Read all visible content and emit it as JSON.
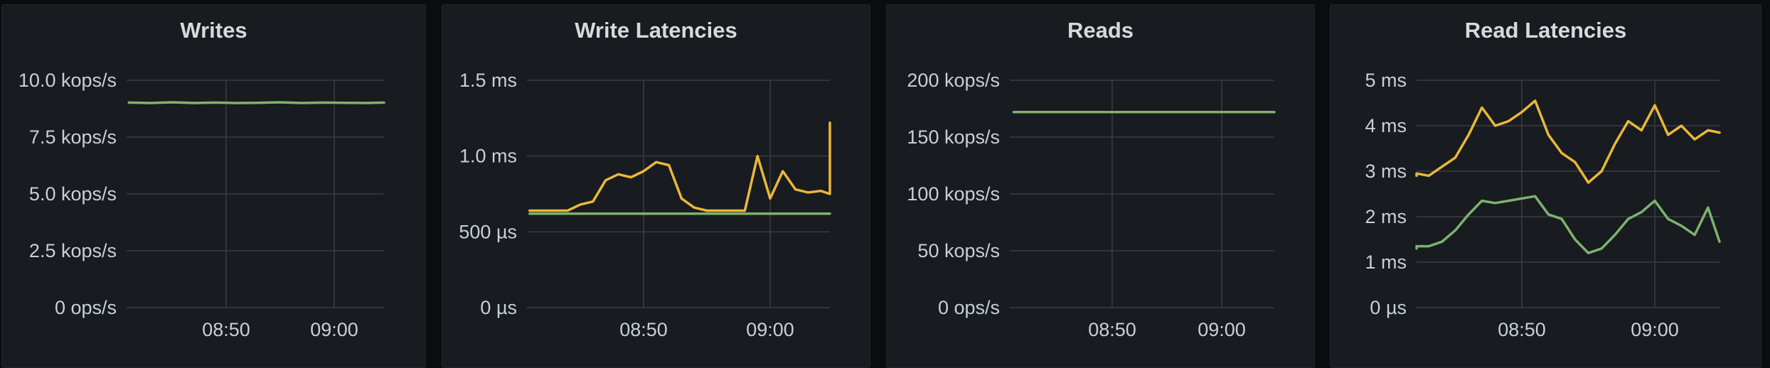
{
  "colors": {
    "background": "#0b0c0e",
    "panel": "#181b1f",
    "grid": "#3a3d42",
    "text": "#c7d0d9",
    "series_green": "#7eb26d",
    "series_yellow": "#eab839"
  },
  "x_ticks": [
    "08:50",
    "09:00"
  ],
  "chart_data": [
    {
      "type": "line",
      "title": "Writes",
      "unit": "kops/s",
      "ylim": [
        0,
        10.0
      ],
      "y_ticks": [
        {
          "value": 0,
          "label": "0 ops/s"
        },
        {
          "value": 2.5,
          "label": "2.5 kops/s"
        },
        {
          "value": 5.0,
          "label": "5.0 kops/s"
        },
        {
          "value": 7.5,
          "label": "7.5 kops/s"
        },
        {
          "value": 10.0,
          "label": "10.0 kops/s"
        }
      ],
      "grid": true,
      "legend": "none",
      "x": [
        "08:41",
        "08:43",
        "08:45",
        "08:47",
        "08:49",
        "08:51",
        "08:53",
        "08:55",
        "08:57",
        "08:59",
        "09:01",
        "09:03",
        "09:05"
      ],
      "series": [
        {
          "color": "#7eb26d",
          "values": [
            9.02,
            9.0,
            9.03,
            9.0,
            9.02,
            9.0,
            9.01,
            9.03,
            9.0,
            9.02,
            9.01,
            9.0,
            9.02
          ]
        }
      ]
    },
    {
      "type": "line",
      "title": "Write Latencies",
      "unit": "ms",
      "ylim": [
        0,
        1.5
      ],
      "y_ticks": [
        {
          "value": 0,
          "label": "0 µs"
        },
        {
          "value": 0.5,
          "label": "500 µs"
        },
        {
          "value": 1.0,
          "label": "1.0 ms"
        },
        {
          "value": 1.5,
          "label": "1.5 ms"
        }
      ],
      "grid": true,
      "legend": "none",
      "x": [
        "08:41",
        "08:42",
        "08:43",
        "08:44",
        "08:45",
        "08:46",
        "08:47",
        "08:48",
        "08:49",
        "08:50",
        "08:51",
        "08:52",
        "08:53",
        "08:54",
        "08:55",
        "08:56",
        "08:57",
        "08:58",
        "08:59",
        "09:00",
        "09:01",
        "09:02",
        "09:03",
        "09:04",
        "09:05",
        "09:06"
      ],
      "series": [
        {
          "color": "#eab839",
          "values": [
            0.64,
            0.64,
            0.64,
            0.64,
            0.68,
            0.7,
            0.84,
            0.88,
            0.86,
            0.9,
            0.96,
            0.94,
            0.72,
            0.66,
            0.64,
            0.64,
            0.64,
            0.64,
            1.0,
            0.72,
            0.9,
            0.78,
            0.76,
            0.77,
            0.75,
            1.22
          ]
        },
        {
          "color": "#7eb26d",
          "values": [
            0.62,
            0.62,
            0.62,
            0.62,
            0.62,
            0.62,
            0.62,
            0.62,
            0.62,
            0.62,
            0.62,
            0.62,
            0.62,
            0.62,
            0.62,
            0.62,
            0.62,
            0.62,
            0.62,
            0.62,
            0.62,
            0.62,
            0.62,
            0.62,
            0.62,
            0.62
          ]
        }
      ]
    },
    {
      "type": "line",
      "title": "Reads",
      "unit": "kops/s",
      "ylim": [
        0,
        200
      ],
      "y_ticks": [
        {
          "value": 0,
          "label": "0 ops/s"
        },
        {
          "value": 50,
          "label": "50 kops/s"
        },
        {
          "value": 100,
          "label": "100 kops/s"
        },
        {
          "value": 150,
          "label": "150 kops/s"
        },
        {
          "value": 200,
          "label": "200 kops/s"
        }
      ],
      "grid": true,
      "legend": "none",
      "x": [
        "08:41",
        "08:45",
        "08:49",
        "08:53",
        "08:57",
        "09:01",
        "09:05"
      ],
      "series": [
        {
          "color": "#7eb26d",
          "values": [
            172,
            172,
            172,
            172,
            172,
            172,
            172
          ]
        }
      ]
    },
    {
      "type": "line",
      "title": "Read Latencies",
      "unit": "ms",
      "ylim": [
        0,
        5
      ],
      "y_ticks": [
        {
          "value": 0,
          "label": "0 µs"
        },
        {
          "value": 1,
          "label": "1 ms"
        },
        {
          "value": 2,
          "label": "2 ms"
        },
        {
          "value": 3,
          "label": "3 ms"
        },
        {
          "value": 4,
          "label": "4 ms"
        },
        {
          "value": 5,
          "label": "5 ms"
        }
      ],
      "grid": true,
      "legend": "none",
      "x": [
        "08:41",
        "08:42",
        "08:43",
        "08:44",
        "08:45",
        "08:46",
        "08:47",
        "08:48",
        "08:49",
        "08:50",
        "08:51",
        "08:52",
        "08:53",
        "08:54",
        "08:55",
        "08:56",
        "08:57",
        "08:58",
        "08:59",
        "09:00",
        "09:01",
        "09:02",
        "09:03",
        "09:04",
        "09:05"
      ],
      "series": [
        {
          "color": "#eab839",
          "values": [
            2.9,
            2.95,
            2.9,
            3.1,
            3.3,
            3.8,
            4.4,
            4.0,
            4.1,
            4.3,
            4.55,
            3.8,
            3.4,
            3.2,
            2.75,
            3.0,
            3.6,
            4.1,
            3.9,
            4.45,
            3.8,
            4.0,
            3.7,
            3.9,
            3.85
          ]
        },
        {
          "color": "#7eb26d",
          "values": [
            1.3,
            1.35,
            1.35,
            1.45,
            1.7,
            2.05,
            2.35,
            2.3,
            2.35,
            2.4,
            2.45,
            2.05,
            1.95,
            1.5,
            1.2,
            1.3,
            1.6,
            1.95,
            2.1,
            2.35,
            1.95,
            1.8,
            1.6,
            2.2,
            1.45
          ]
        }
      ]
    }
  ]
}
